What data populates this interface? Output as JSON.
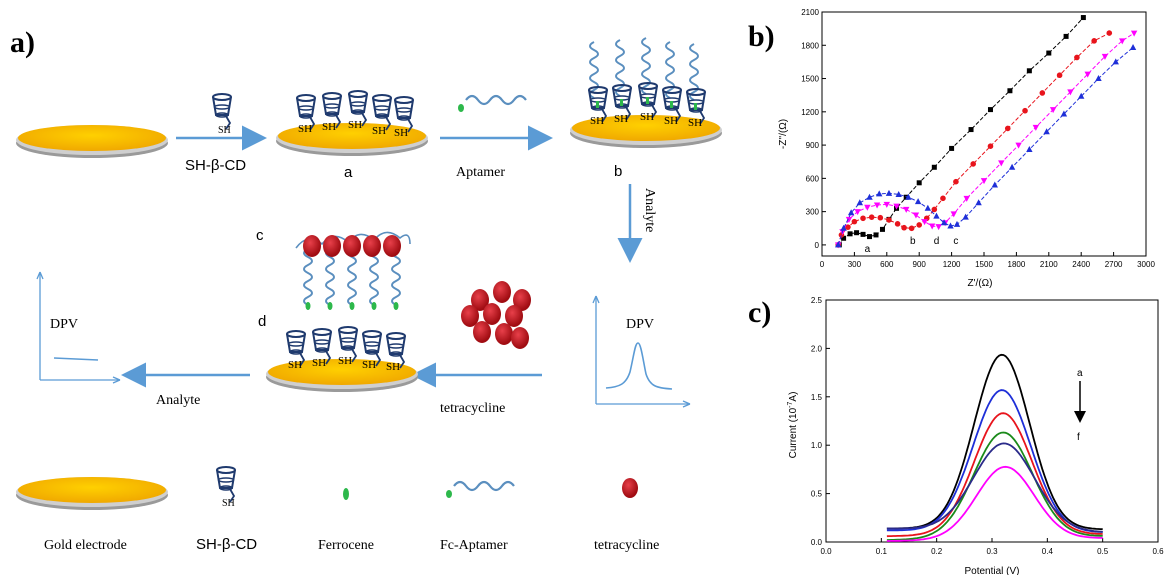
{
  "panel_a": {
    "label": "a)",
    "step_labels": {
      "a": "a",
      "b": "b",
      "c": "c",
      "d": "d"
    },
    "arrow_labels": {
      "reagent1": "SH-β-CD",
      "reagent2": "Aptamer",
      "reagent3": "Analyte",
      "reagent4": "tetracycline",
      "reagent5": "Analyte"
    },
    "sh_label": "SH",
    "dpv_labels": {
      "right": "DPV",
      "left": "DPV"
    },
    "legend": [
      {
        "label": "Gold electrode",
        "icon": "gold-electrode-icon"
      },
      {
        "label": "SH-β-CD",
        "icon": "cyclodextrin-icon"
      },
      {
        "label": "Ferrocene",
        "icon": "ferrocene-icon"
      },
      {
        "label": "Fc-Aptamer",
        "icon": "aptamer-icon"
      },
      {
        "label": "tetracycline",
        "icon": "tetracycline-icon"
      }
    ],
    "colors": {
      "gold": "#f7b500",
      "arrow": "#5b9bd5",
      "aptamer": "#5b8fbf",
      "ferrocene": "#2db84b",
      "tetracycline": "#c0141a"
    }
  },
  "chart_data": [
    {
      "panel": "b)",
      "type": "scatter",
      "xlabel": "Z'/(Ω)",
      "ylabel": "-Z''/(Ω)",
      "xlim": [
        0,
        3000
      ],
      "ylim": [
        -100,
        2100
      ],
      "xticks": [
        0,
        300,
        600,
        900,
        1200,
        1500,
        1800,
        2100,
        2400,
        2700,
        3000
      ],
      "yticks": [
        0,
        300,
        600,
        900,
        1200,
        1500,
        1800,
        2100
      ],
      "series": [
        {
          "name": "a",
          "color": "#000000",
          "marker": "square",
          "label_at": [
            420,
            -30
          ],
          "x": [
            160,
            200,
            260,
            320,
            380,
            440,
            500,
            560,
            620,
            690,
            780,
            900,
            1040,
            1200,
            1380,
            1560,
            1740,
            1920,
            2100,
            2260,
            2420
          ],
          "y": [
            0,
            60,
            100,
            110,
            95,
            75,
            90,
            140,
            230,
            330,
            430,
            560,
            700,
            870,
            1040,
            1220,
            1390,
            1570,
            1730,
            1880,
            2050
          ]
        },
        {
          "name": "b",
          "color": "#e8141c",
          "marker": "circle",
          "label_at": [
            840,
            45
          ],
          "x": [
            150,
            180,
            240,
            300,
            380,
            460,
            540,
            620,
            700,
            760,
            830,
            900,
            970,
            1040,
            1120,
            1240,
            1400,
            1560,
            1720,
            1880,
            2040,
            2200,
            2360,
            2520,
            2660
          ],
          "y": [
            0,
            90,
            160,
            210,
            240,
            250,
            245,
            225,
            190,
            155,
            150,
            180,
            240,
            320,
            420,
            570,
            730,
            890,
            1050,
            1210,
            1370,
            1530,
            1690,
            1840,
            1910
          ]
        },
        {
          "name": "d",
          "color": "#ff00ff",
          "marker": "tri-down",
          "label_at": [
            1060,
            45
          ],
          "x": [
            150,
            190,
            250,
            330,
            420,
            510,
            600,
            690,
            780,
            870,
            950,
            1020,
            1080,
            1140,
            1220,
            1340,
            1500,
            1660,
            1820,
            1980,
            2140,
            2300,
            2460,
            2620,
            2780,
            2890
          ],
          "y": [
            0,
            120,
            230,
            300,
            340,
            360,
            365,
            350,
            320,
            270,
            210,
            170,
            165,
            200,
            280,
            420,
            580,
            740,
            900,
            1060,
            1220,
            1380,
            1540,
            1700,
            1840,
            1910
          ]
        },
        {
          "name": "c",
          "color": "#1e2fd8",
          "marker": "tri-up",
          "label_at": [
            1240,
            45
          ],
          "x": [
            150,
            200,
            270,
            350,
            440,
            530,
            620,
            710,
            800,
            890,
            980,
            1060,
            1130,
            1190,
            1250,
            1330,
            1450,
            1600,
            1760,
            1920,
            2080,
            2240,
            2400,
            2560,
            2720,
            2880
          ],
          "y": [
            0,
            150,
            290,
            380,
            430,
            460,
            465,
            455,
            430,
            390,
            330,
            260,
            200,
            170,
            185,
            250,
            380,
            540,
            700,
            860,
            1020,
            1180,
            1340,
            1500,
            1650,
            1780
          ]
        }
      ]
    },
    {
      "panel": "c)",
      "type": "line",
      "xlabel": "Potential (V)",
      "ylabel": "Current (10⁻A)",
      "ylabel_main": "Current (10",
      "ylabel_sup": "-7",
      "ylabel_end": "A)",
      "xlim": [
        0.0,
        0.6
      ],
      "ylim": [
        0.0,
        2.5
      ],
      "xticks": [
        "0.0",
        "0.1",
        "0.2",
        "0.3",
        "0.4",
        "0.5",
        "0.6"
      ],
      "yticks": [
        "0.0",
        "0.5",
        "1.0",
        "1.5",
        "2.0",
        "2.5"
      ],
      "annotation": {
        "top": "a",
        "bottom": "f"
      },
      "curves": [
        {
          "color": "#000000",
          "peak": 1.8,
          "center": 0.318,
          "width": 0.05,
          "b0": 0.14,
          "b1": 0.13
        },
        {
          "color": "#1e2fd8",
          "peak": 1.46,
          "center": 0.318,
          "width": 0.052,
          "b0": 0.12,
          "b1": 0.1
        },
        {
          "color": "#e8141c",
          "peak": 1.26,
          "center": 0.32,
          "width": 0.052,
          "b0": 0.06,
          "b1": 0.08
        },
        {
          "color": "#1a8a1a",
          "peak": 1.09,
          "center": 0.32,
          "width": 0.053,
          "b0": 0.02,
          "b1": 0.06
        },
        {
          "color": "#2b2b8a",
          "peak": 0.9,
          "center": 0.322,
          "width": 0.055,
          "b0": 0.14,
          "b1": 0.1
        },
        {
          "color": "#ff00ff",
          "peak": 0.75,
          "center": 0.324,
          "width": 0.052,
          "b0": 0.01,
          "b1": 0.04
        }
      ]
    }
  ]
}
